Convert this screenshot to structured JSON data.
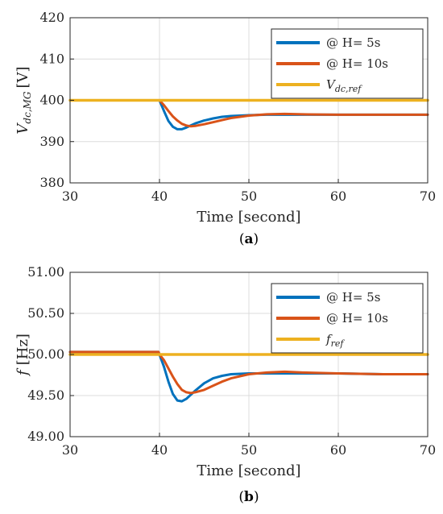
{
  "chart_data": [
    {
      "type": "line",
      "caption": "(a)",
      "caption_letter": "a",
      "xlabel": "Time [second]",
      "ylabel_main": "V",
      "ylabel_sub": "dc,MG",
      "ylabel_unit": "[V]",
      "xlim": [
        30,
        70
      ],
      "ylim": [
        380,
        420
      ],
      "xticks": [
        "30",
        "40",
        "50",
        "60",
        "70"
      ],
      "yticks": [
        "380",
        "390",
        "400",
        "410",
        "420"
      ],
      "grid": true,
      "legend_position": "top-right",
      "series": [
        {
          "name": "@ H= 5s",
          "color": "#0072BD",
          "x": [
            30,
            39.9,
            40,
            40.5,
            41,
            41.5,
            42,
            42.5,
            43,
            44,
            45,
            46,
            47,
            48,
            50,
            52,
            55,
            60,
            65,
            70
          ],
          "y": [
            400,
            400,
            400,
            397.4,
            395.0,
            393.6,
            393.0,
            393.0,
            393.4,
            394.4,
            395.1,
            395.6,
            396.0,
            396.2,
            396.4,
            396.5,
            396.5,
            396.5,
            396.5,
            396.5
          ]
        },
        {
          "name": "@ H= 10s",
          "color": "#D95319",
          "x": [
            30,
            39.9,
            40,
            40.5,
            41,
            41.5,
            42,
            42.5,
            43,
            43.5,
            44,
            45,
            46,
            47,
            48,
            50,
            52,
            54,
            56,
            60,
            65,
            70
          ],
          "y": [
            400,
            400,
            400,
            398.8,
            397.4,
            396.1,
            395.1,
            394.3,
            393.9,
            393.7,
            393.8,
            394.2,
            394.7,
            395.2,
            395.7,
            396.3,
            396.6,
            396.7,
            396.6,
            396.5,
            396.5,
            396.5
          ]
        },
        {
          "name_main": "V",
          "name_sub": "dc,ref",
          "color": "#EDB120",
          "x": [
            30,
            70
          ],
          "y": [
            400,
            400
          ]
        }
      ]
    },
    {
      "type": "line",
      "caption": "(b)",
      "caption_letter": "b",
      "xlabel": "Time [second]",
      "ylabel_main": "f",
      "ylabel_unit": "[Hz]",
      "xlim": [
        30,
        70
      ],
      "ylim": [
        49.0,
        51.0
      ],
      "xticks": [
        "30",
        "40",
        "50",
        "60",
        "70"
      ],
      "yticks": [
        "49.00",
        "49.50",
        "50.00",
        "50.50",
        "51.00"
      ],
      "grid": true,
      "legend_position": "top-right",
      "series": [
        {
          "name": "@ H= 5s",
          "color": "#0072BD",
          "x": [
            30,
            39.9,
            40,
            40.5,
            41,
            41.5,
            42,
            42.5,
            43,
            44,
            45,
            46,
            47,
            48,
            50,
            52,
            55,
            60,
            65,
            70
          ],
          "y": [
            50.03,
            50.03,
            50.0,
            49.85,
            49.67,
            49.52,
            49.44,
            49.43,
            49.46,
            49.56,
            49.65,
            49.71,
            49.74,
            49.76,
            49.77,
            49.77,
            49.77,
            49.77,
            49.76,
            49.76
          ]
        },
        {
          "name": "@ H= 10s",
          "color": "#D95319",
          "x": [
            30,
            39.9,
            40,
            40.5,
            41,
            41.5,
            42,
            42.5,
            43,
            43.5,
            44,
            45,
            46,
            47,
            48,
            50,
            52,
            54,
            56,
            60,
            65,
            70
          ],
          "y": [
            50.03,
            50.03,
            50.0,
            49.93,
            49.83,
            49.73,
            49.64,
            49.57,
            49.54,
            49.53,
            49.54,
            49.57,
            49.62,
            49.67,
            49.71,
            49.76,
            49.78,
            49.79,
            49.78,
            49.77,
            49.76,
            49.76
          ]
        },
        {
          "name_main": "f",
          "name_sub": "ref",
          "color": "#EDB120",
          "x": [
            30,
            70
          ],
          "y": [
            50.0,
            50.0
          ]
        }
      ]
    }
  ]
}
